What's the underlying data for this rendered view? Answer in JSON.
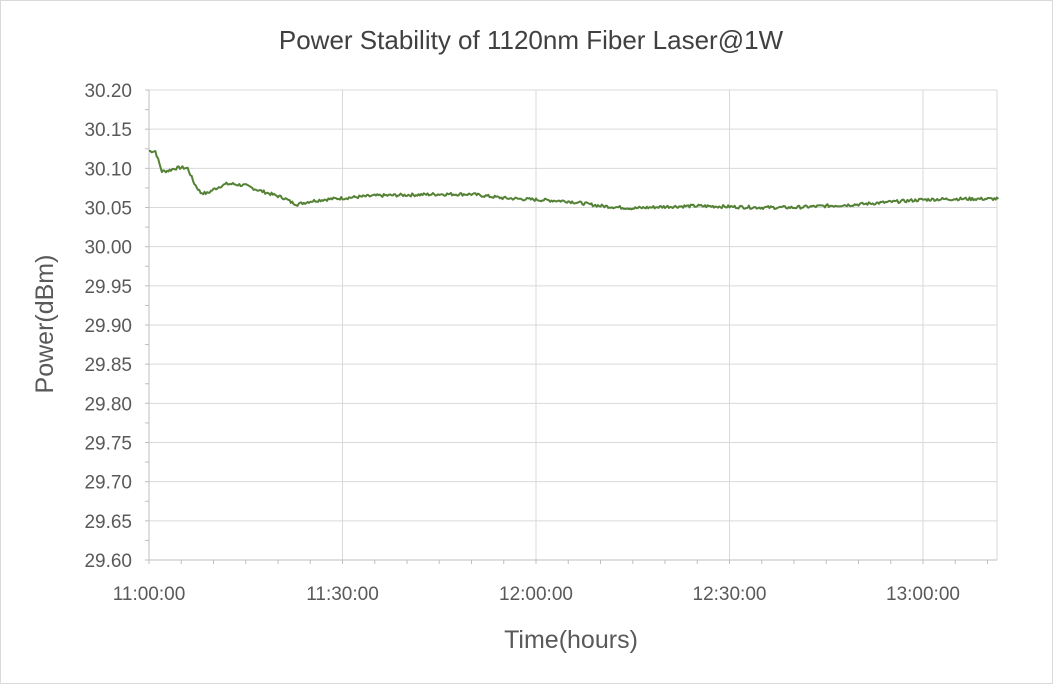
{
  "chart_data": {
    "type": "line",
    "title": "Power Stability of 1120nm Fiber Laser@1W",
    "xlabel": "Time(hours)",
    "ylabel": "Power(dBm)",
    "ylim": [
      29.6,
      30.2
    ],
    "y_ticks": [
      "30.20",
      "30.15",
      "30.10",
      "30.05",
      "30.00",
      "29.95",
      "29.90",
      "29.85",
      "29.80",
      "29.75",
      "29.70",
      "29.65",
      "29.60"
    ],
    "x_ticks": [
      "11:00:00",
      "11:30:00",
      "12:00:00",
      "12:30:00",
      "13:00:00"
    ],
    "xlim": [
      "11:00:00",
      "13:11:40"
    ],
    "grid": true,
    "series": [
      {
        "color": "#548235",
        "x": [
          "11:00:00",
          "11:01:00",
          "11:02:00",
          "11:03:00",
          "11:04:00",
          "11:05:00",
          "11:06:00",
          "11:07:00",
          "11:08:00",
          "11:09:00",
          "11:10:00",
          "11:11:00",
          "11:12:00",
          "11:13:00",
          "11:14:00",
          "11:15:00",
          "11:17:00",
          "11:19:00",
          "11:21:00",
          "11:22:00",
          "11:23:00",
          "11:25:00",
          "11:27:00",
          "11:30:00",
          "11:35:00",
          "11:40:00",
          "11:45:00",
          "11:50:00",
          "11:55:00",
          "12:00:00",
          "12:05:00",
          "12:10:00",
          "12:15:00",
          "12:20:00",
          "12:25:00",
          "12:30:00",
          "12:35:00",
          "12:40:00",
          "12:45:00",
          "12:50:00",
          "12:55:00",
          "13:00:00",
          "13:05:00",
          "13:11:40"
        ],
        "values": [
          30.122,
          30.122,
          30.096,
          30.097,
          30.1,
          30.101,
          30.1,
          30.081,
          30.069,
          30.068,
          30.073,
          30.077,
          30.08,
          30.08,
          30.079,
          30.078,
          30.072,
          30.067,
          30.062,
          30.057,
          30.054,
          30.058,
          30.06,
          30.062,
          30.065,
          30.066,
          30.067,
          30.067,
          30.062,
          30.06,
          30.058,
          30.052,
          30.049,
          30.051,
          30.052,
          30.051,
          30.05,
          30.05,
          30.052,
          30.054,
          30.057,
          30.06,
          30.061,
          30.061
        ]
      }
    ]
  }
}
